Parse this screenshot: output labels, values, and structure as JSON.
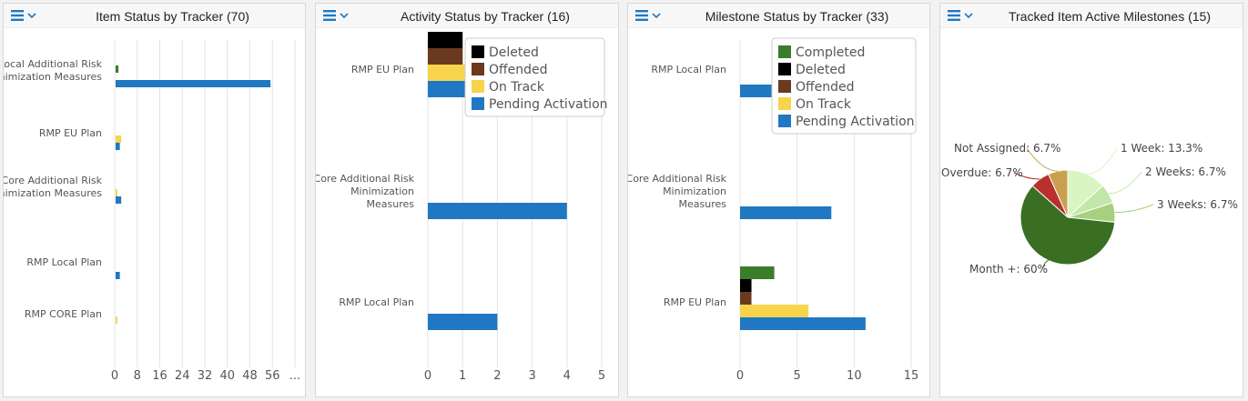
{
  "colors": {
    "completed": "#3a7d2a",
    "deleted": "#000000",
    "offended": "#6b3a1e",
    "on_track": "#f7d44c",
    "pending_activation": "#1f78c1",
    "header_icon": "#1f78c1",
    "grid": "#e3e3e3",
    "tick_text": "#555555",
    "category_text": "#555555"
  },
  "icons": {
    "menu": "hamburger-icon",
    "dropdown": "chevron-down-icon"
  },
  "panels": [
    {
      "title": "Item Status by Tracker (70)"
    },
    {
      "title": "Activity Status by Tracker (16)"
    },
    {
      "title": "Milestone Status by Tracker (33)"
    },
    {
      "title": "Tracked Item Active Milestones (15)"
    }
  ],
  "chart_data": [
    {
      "type": "bar",
      "orientation": "horizontal",
      "title": "Item Status by Tracker (70)",
      "categories": [
        "Local Additional Risk Minimization Measures",
        "RMP EU Plan",
        "Core Additional Risk Minimization Measures",
        "RMP Local Plan",
        "RMP CORE Plan"
      ],
      "series": [
        {
          "name": "Completed",
          "values": [
            1,
            0,
            0,
            0,
            0
          ]
        },
        {
          "name": "Offended",
          "values": [
            0,
            0,
            0,
            0,
            0
          ]
        },
        {
          "name": "Deleted",
          "values": [
            0,
            0,
            0,
            0,
            0
          ]
        },
        {
          "name": "Completed",
          "values": [
            1,
            0,
            0,
            0,
            0
          ]
        },
        {
          "name": "On Track",
          "values": [
            0,
            2,
            0.3,
            0,
            0.3
          ]
        },
        {
          "name": "Pending Activation",
          "values": [
            55,
            1.5,
            2,
            1.5,
            0
          ]
        }
      ],
      "xticks": [
        "0",
        "8",
        "16",
        "24",
        "32",
        "40",
        "48",
        "56",
        "..."
      ],
      "xlim": [
        0,
        64
      ],
      "grid": true,
      "legend": "none"
    },
    {
      "type": "bar",
      "orientation": "horizontal",
      "title": "Activity Status by Tracker (16)",
      "categories": [
        "RMP EU Plan",
        "Core Additional Risk Minimization Measures",
        "RMP Local Plan"
      ],
      "series": [
        {
          "name": "Deleted",
          "values": [
            1,
            0,
            0
          ]
        },
        {
          "name": "Offended",
          "values": [
            1,
            0,
            0
          ]
        },
        {
          "name": "On Track",
          "values": [
            4,
            0,
            0
          ]
        },
        {
          "name": "Pending Activation",
          "values": [
            4,
            4,
            2
          ]
        }
      ],
      "xticks": [
        "0",
        "1",
        "2",
        "3",
        "4",
        "5"
      ],
      "xlim": [
        0,
        5
      ],
      "grid": true,
      "legend": "top-right"
    },
    {
      "type": "bar",
      "orientation": "horizontal",
      "title": "Milestone Status by Tracker (33)",
      "categories": [
        "RMP Local Plan",
        "Core Additional Risk Minimization Measures",
        "RMP EU Plan"
      ],
      "series": [
        {
          "name": "Completed",
          "values": [
            0,
            0,
            3
          ]
        },
        {
          "name": "Deleted",
          "values": [
            0,
            0,
            1
          ]
        },
        {
          "name": "Offended",
          "values": [
            0,
            0,
            1
          ]
        },
        {
          "name": "On Track",
          "values": [
            0,
            0,
            6
          ]
        },
        {
          "name": "Pending Activation",
          "values": [
            3,
            8,
            11
          ]
        }
      ],
      "xticks": [
        "0",
        "5",
        "10",
        "15"
      ],
      "xlim": [
        0,
        15
      ],
      "grid": true,
      "legend": "top-right"
    },
    {
      "type": "pie",
      "title": "Tracked Item Active Milestones (15)",
      "slices": [
        {
          "label": "1 Week: 13.3%",
          "value": 13.3,
          "color": "#d8f5c2"
        },
        {
          "label": "2 Weeks: 6.7%",
          "value": 6.7,
          "color": "#c3e7a8"
        },
        {
          "label": "3 Weeks: 6.7%",
          "value": 6.7,
          "color": "#a7d07f"
        },
        {
          "label": "Month +: 60%",
          "value": 60,
          "color": "#3a6e22"
        },
        {
          "label": "Overdue: 6.7%",
          "value": 6.7,
          "color": "#b8312f"
        },
        {
          "label": "Not Assigned: 6.7%",
          "value": 6.7,
          "color": "#c9a04f"
        }
      ],
      "legend": "none"
    }
  ]
}
